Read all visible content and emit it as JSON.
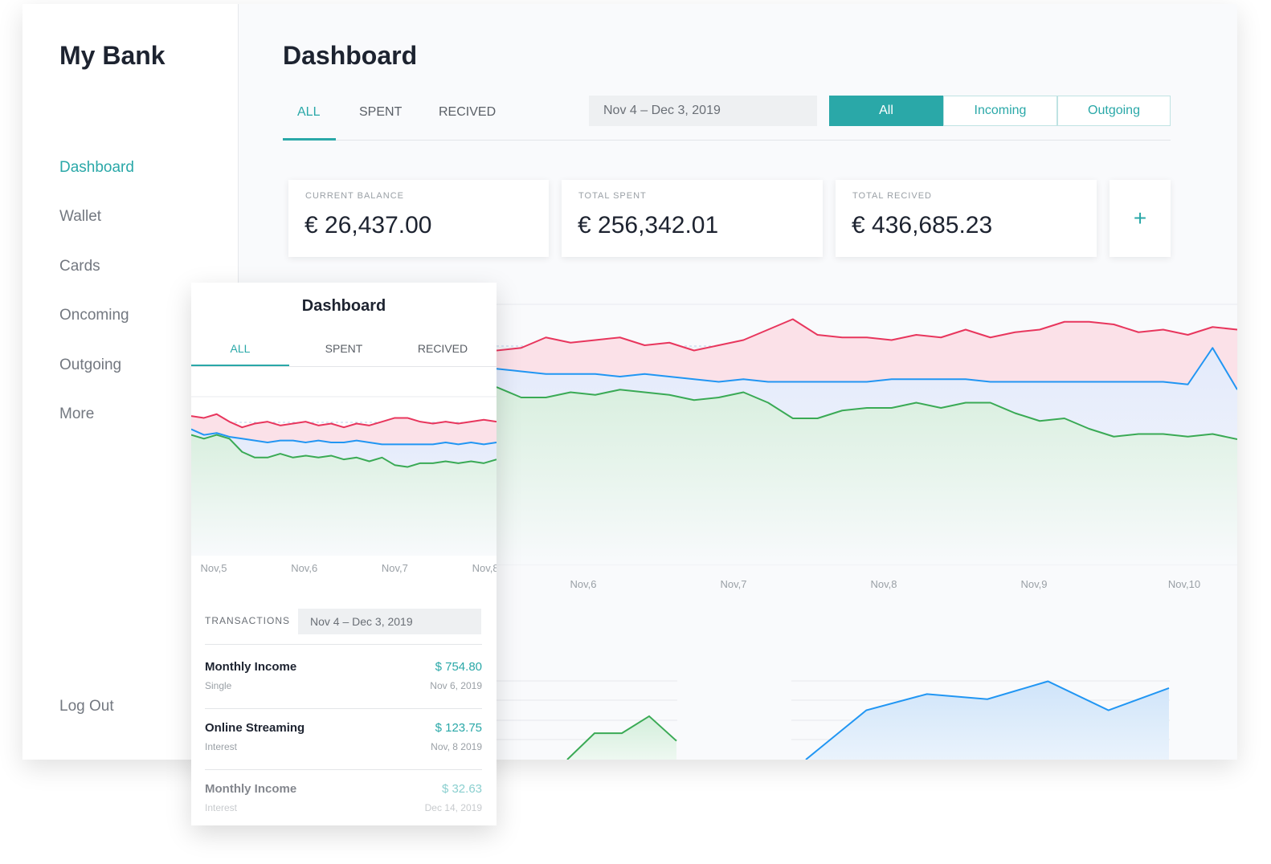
{
  "sidebar": {
    "brand": "My Bank",
    "nav": [
      "Dashboard",
      "Wallet",
      "Cards",
      "Oncoming",
      "Outgoing",
      "More"
    ],
    "logout": "Log Out"
  },
  "header": {
    "title": "Dashboard",
    "tabs": [
      "ALL",
      "SPENT",
      "RECIVED"
    ],
    "date_range": "Nov 4 – Dec 3, 2019",
    "filters": [
      "All",
      "Incoming",
      "Outgoing"
    ]
  },
  "stats": [
    {
      "label": "CURRENT BALANCE",
      "value": "€ 26,437.00"
    },
    {
      "label": "TOTAL SPENT",
      "value": "€ 256,342.01"
    },
    {
      "label": "TOTAL RECIVED",
      "value": "€ 436,685.23"
    }
  ],
  "add_button": "+",
  "main_chart": {
    "x_labels": [
      "Nov,6",
      "Nov,7",
      "Nov,8",
      "Nov,9",
      "Nov,10"
    ],
    "ylim": [
      0,
      100
    ],
    "series": [
      {
        "color": "#e8365d",
        "values": [
          82,
          83,
          87,
          85,
          86,
          87,
          84,
          85,
          82,
          84,
          86,
          90,
          94,
          88,
          87,
          87,
          86,
          88,
          87,
          90,
          87,
          89,
          90,
          93,
          93,
          92,
          89,
          90,
          88,
          91,
          90
        ]
      },
      {
        "color": "#2196f3",
        "values": [
          75,
          74,
          73,
          73,
          73,
          72,
          73,
          72,
          71,
          70,
          71,
          70,
          70,
          70,
          70,
          70,
          71,
          71,
          71,
          71,
          70,
          70,
          70,
          70,
          70,
          70,
          70,
          70,
          69,
          83,
          67
        ]
      },
      {
        "color": "#3aaa55",
        "values": [
          68,
          64,
          64,
          66,
          65,
          67,
          66,
          65,
          63,
          64,
          66,
          62,
          56,
          56,
          59,
          60,
          60,
          62,
          60,
          62,
          62,
          58,
          55,
          56,
          52,
          49,
          50,
          50,
          49,
          50,
          48
        ]
      }
    ]
  },
  "bottom_charts": [
    {
      "color": "#3aaa55",
      "ylim": [
        0,
        100
      ],
      "values": [
        0,
        31,
        31,
        51,
        22
      ]
    },
    {
      "color": "#2196f3",
      "ylim": [
        0,
        100
      ],
      "values": [
        0,
        58,
        77,
        71,
        92,
        58,
        84
      ]
    }
  ],
  "mobile": {
    "title": "Dashboard",
    "tabs": [
      "ALL",
      "SPENT",
      "RECIVED"
    ],
    "chart": {
      "x_labels": [
        "Nov,5",
        "Nov,6",
        "Nov,7",
        "Nov,8"
      ],
      "ylim": [
        0,
        100
      ],
      "series": [
        {
          "color": "#e8365d",
          "values": [
            74,
            73,
            75,
            71,
            68,
            70,
            71,
            69,
            70,
            71,
            69,
            70,
            68,
            70,
            69,
            71,
            73,
            73,
            71,
            70,
            71,
            70,
            71,
            72,
            71
          ]
        },
        {
          "color": "#2196f3",
          "values": [
            67,
            64,
            65,
            63,
            62,
            61,
            60,
            61,
            61,
            60,
            61,
            60,
            60,
            61,
            60,
            59,
            59,
            59,
            59,
            59,
            60,
            59,
            60,
            59,
            60
          ]
        },
        {
          "color": "#3aaa55",
          "values": [
            64,
            62,
            64,
            62,
            55,
            52,
            52,
            54,
            52,
            53,
            52,
            53,
            51,
            52,
            50,
            52,
            48,
            47,
            49,
            49,
            50,
            49,
            50,
            49,
            51
          ]
        }
      ]
    },
    "transactions_label": "TRANSACTIONS",
    "date_range": "Nov 4 – Dec 3, 2019",
    "transactions": [
      {
        "title": "Monthly Income",
        "type": "Single",
        "amount": "$ 754.80",
        "date": "Nov 6, 2019"
      },
      {
        "title": "Online Streaming",
        "type": "Interest",
        "amount": "$ 123.75",
        "date": "Nov, 8 2019"
      },
      {
        "title": "Monthly Income",
        "type": "Interest",
        "amount": "$ 32.63",
        "date": "Dec 14, 2019"
      }
    ]
  }
}
